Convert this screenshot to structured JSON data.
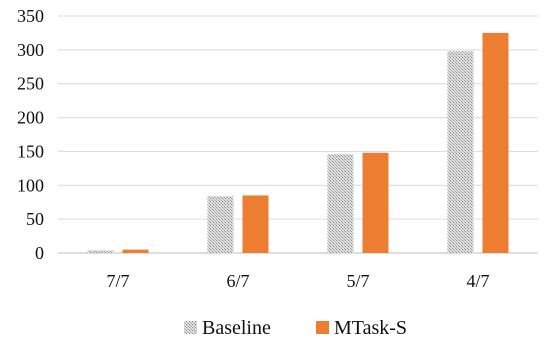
{
  "chart_data": {
    "type": "bar",
    "title": "",
    "xlabel": "",
    "ylabel": "",
    "categories": [
      "7/7",
      "6/7",
      "5/7",
      "4/7"
    ],
    "series": [
      {
        "name": "Baseline",
        "values": [
          4,
          84,
          146,
          298
        ],
        "color": "#c8c8c8",
        "fill_style": "hatched-gray"
      },
      {
        "name": "MTask-S",
        "values": [
          5,
          85,
          148,
          325
        ],
        "color": "#ed7d31",
        "fill_style": "solid"
      }
    ],
    "ylim": [
      0,
      350
    ],
    "yticks": [
      0,
      50,
      100,
      150,
      200,
      250,
      300,
      350
    ],
    "grid": "horizontal",
    "legend_position": "bottom"
  }
}
